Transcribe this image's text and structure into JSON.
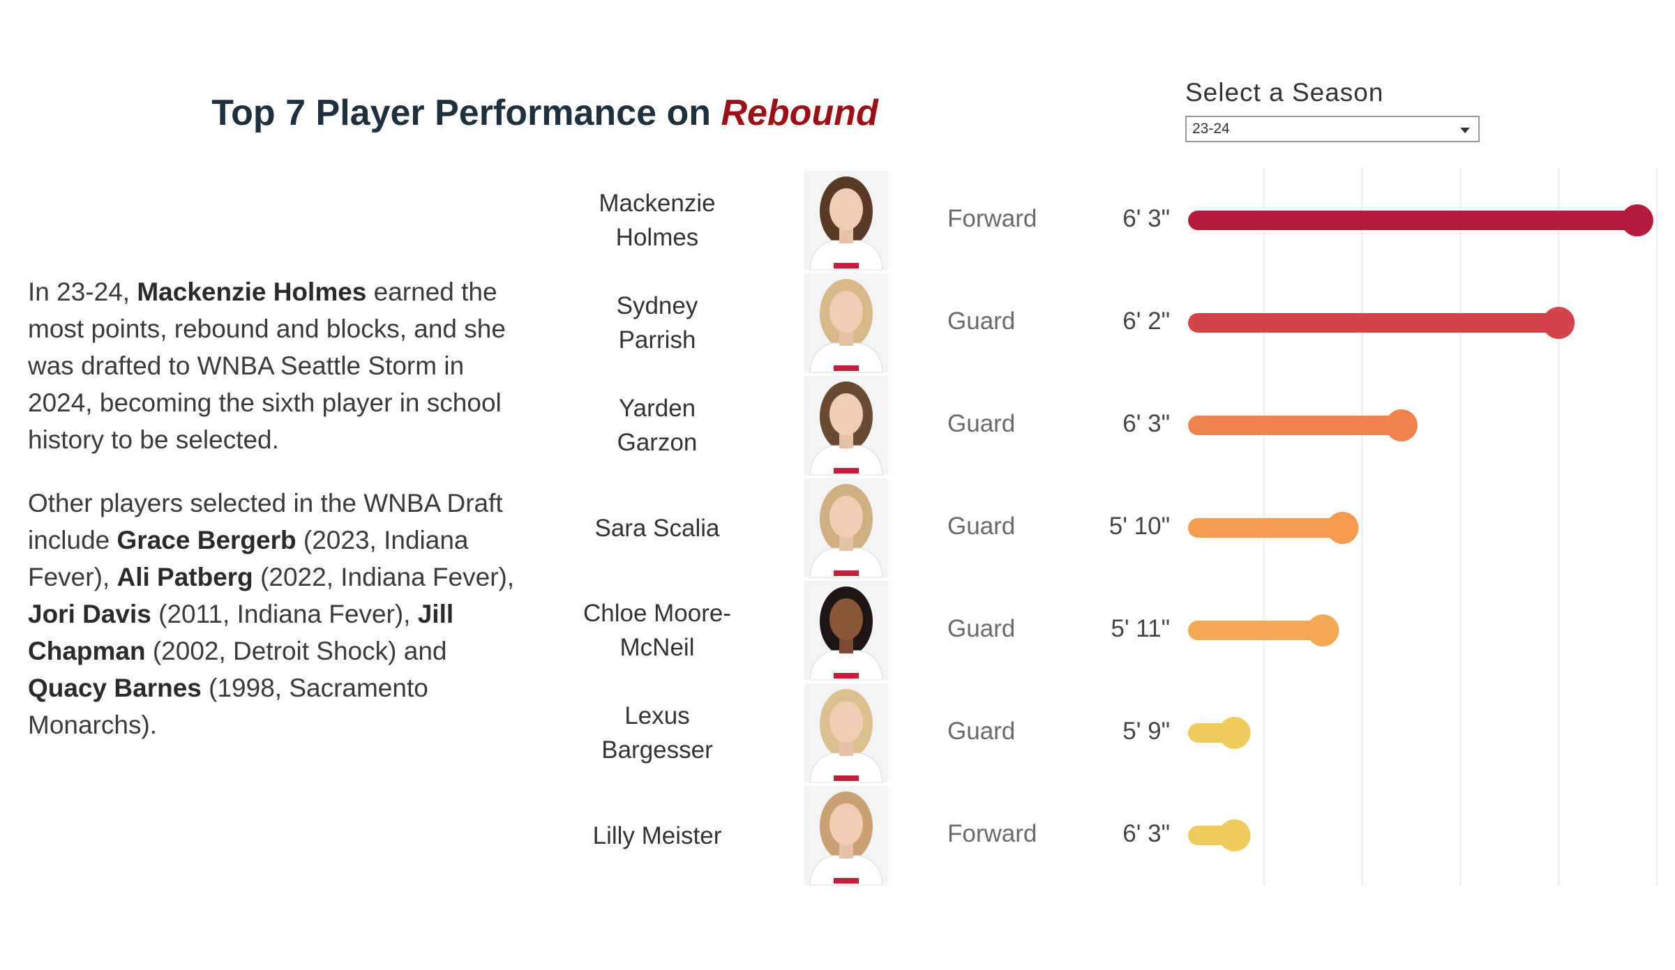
{
  "chart_data": {
    "type": "lollipop",
    "title": "Top 7 Player Performance on ",
    "title_metric": "Rebound",
    "season_label": "Select a Season",
    "season": "23-24",
    "categories": [
      "Mackenzie Holmes",
      "Sydney Parrish",
      "Yarden Garzon",
      "Sara Scalia",
      "Chloe Moore-McNeil",
      "Lexus Bargesser",
      "Lilly Meister"
    ],
    "positions": [
      "Forward",
      "Guard",
      "Guard",
      "Guard",
      "Guard",
      "Guard",
      "Forward"
    ],
    "heights": [
      "6' 3\"",
      "6' 2\"",
      "6' 3\"",
      "5' 10\"",
      "5' 11\"",
      "5' 9\"",
      "6' 3\""
    ],
    "values": [
      240,
      200,
      120,
      90,
      80,
      35,
      35
    ],
    "colors": [
      "#b51c3e",
      "#d2434a",
      "#f0824b",
      "#f59a4f",
      "#f5a853",
      "#efcc5e",
      "#efcc5e"
    ],
    "xlim": [
      0,
      250
    ],
    "xticks": [
      50,
      100,
      150,
      200,
      250
    ],
    "grid": true,
    "narrative": {
      "paragraphs": [
        [
          {
            "text": "In 23-24, "
          },
          {
            "text": "Mackenzie Holmes",
            "bold": true
          },
          {
            "text": " earned the most points, rebound and blocks, and she was drafted to WNBA Seattle Storm in 2024, becoming the sixth player in school history to be selected."
          }
        ],
        [
          {
            "text": "Other players selected in the WNBA Draft include "
          },
          {
            "text": "Grace Bergerb",
            "bold": true
          },
          {
            "text": " (2023, Indiana Fever), "
          },
          {
            "text": "Ali Patberg",
            "bold": true
          },
          {
            "text": " (2022, Indiana Fever), "
          },
          {
            "text": "Jori Davis",
            "bold": true
          },
          {
            "text": " (2011, Indiana Fever), "
          },
          {
            "text": "Jill Chapman",
            "bold": true
          },
          {
            "text": " (2002, Detroit Shock) and "
          },
          {
            "text": "Quacy Barnes",
            "bold": true
          },
          {
            "text": " (1998, Sacramento Monarchs)."
          }
        ]
      ]
    }
  }
}
